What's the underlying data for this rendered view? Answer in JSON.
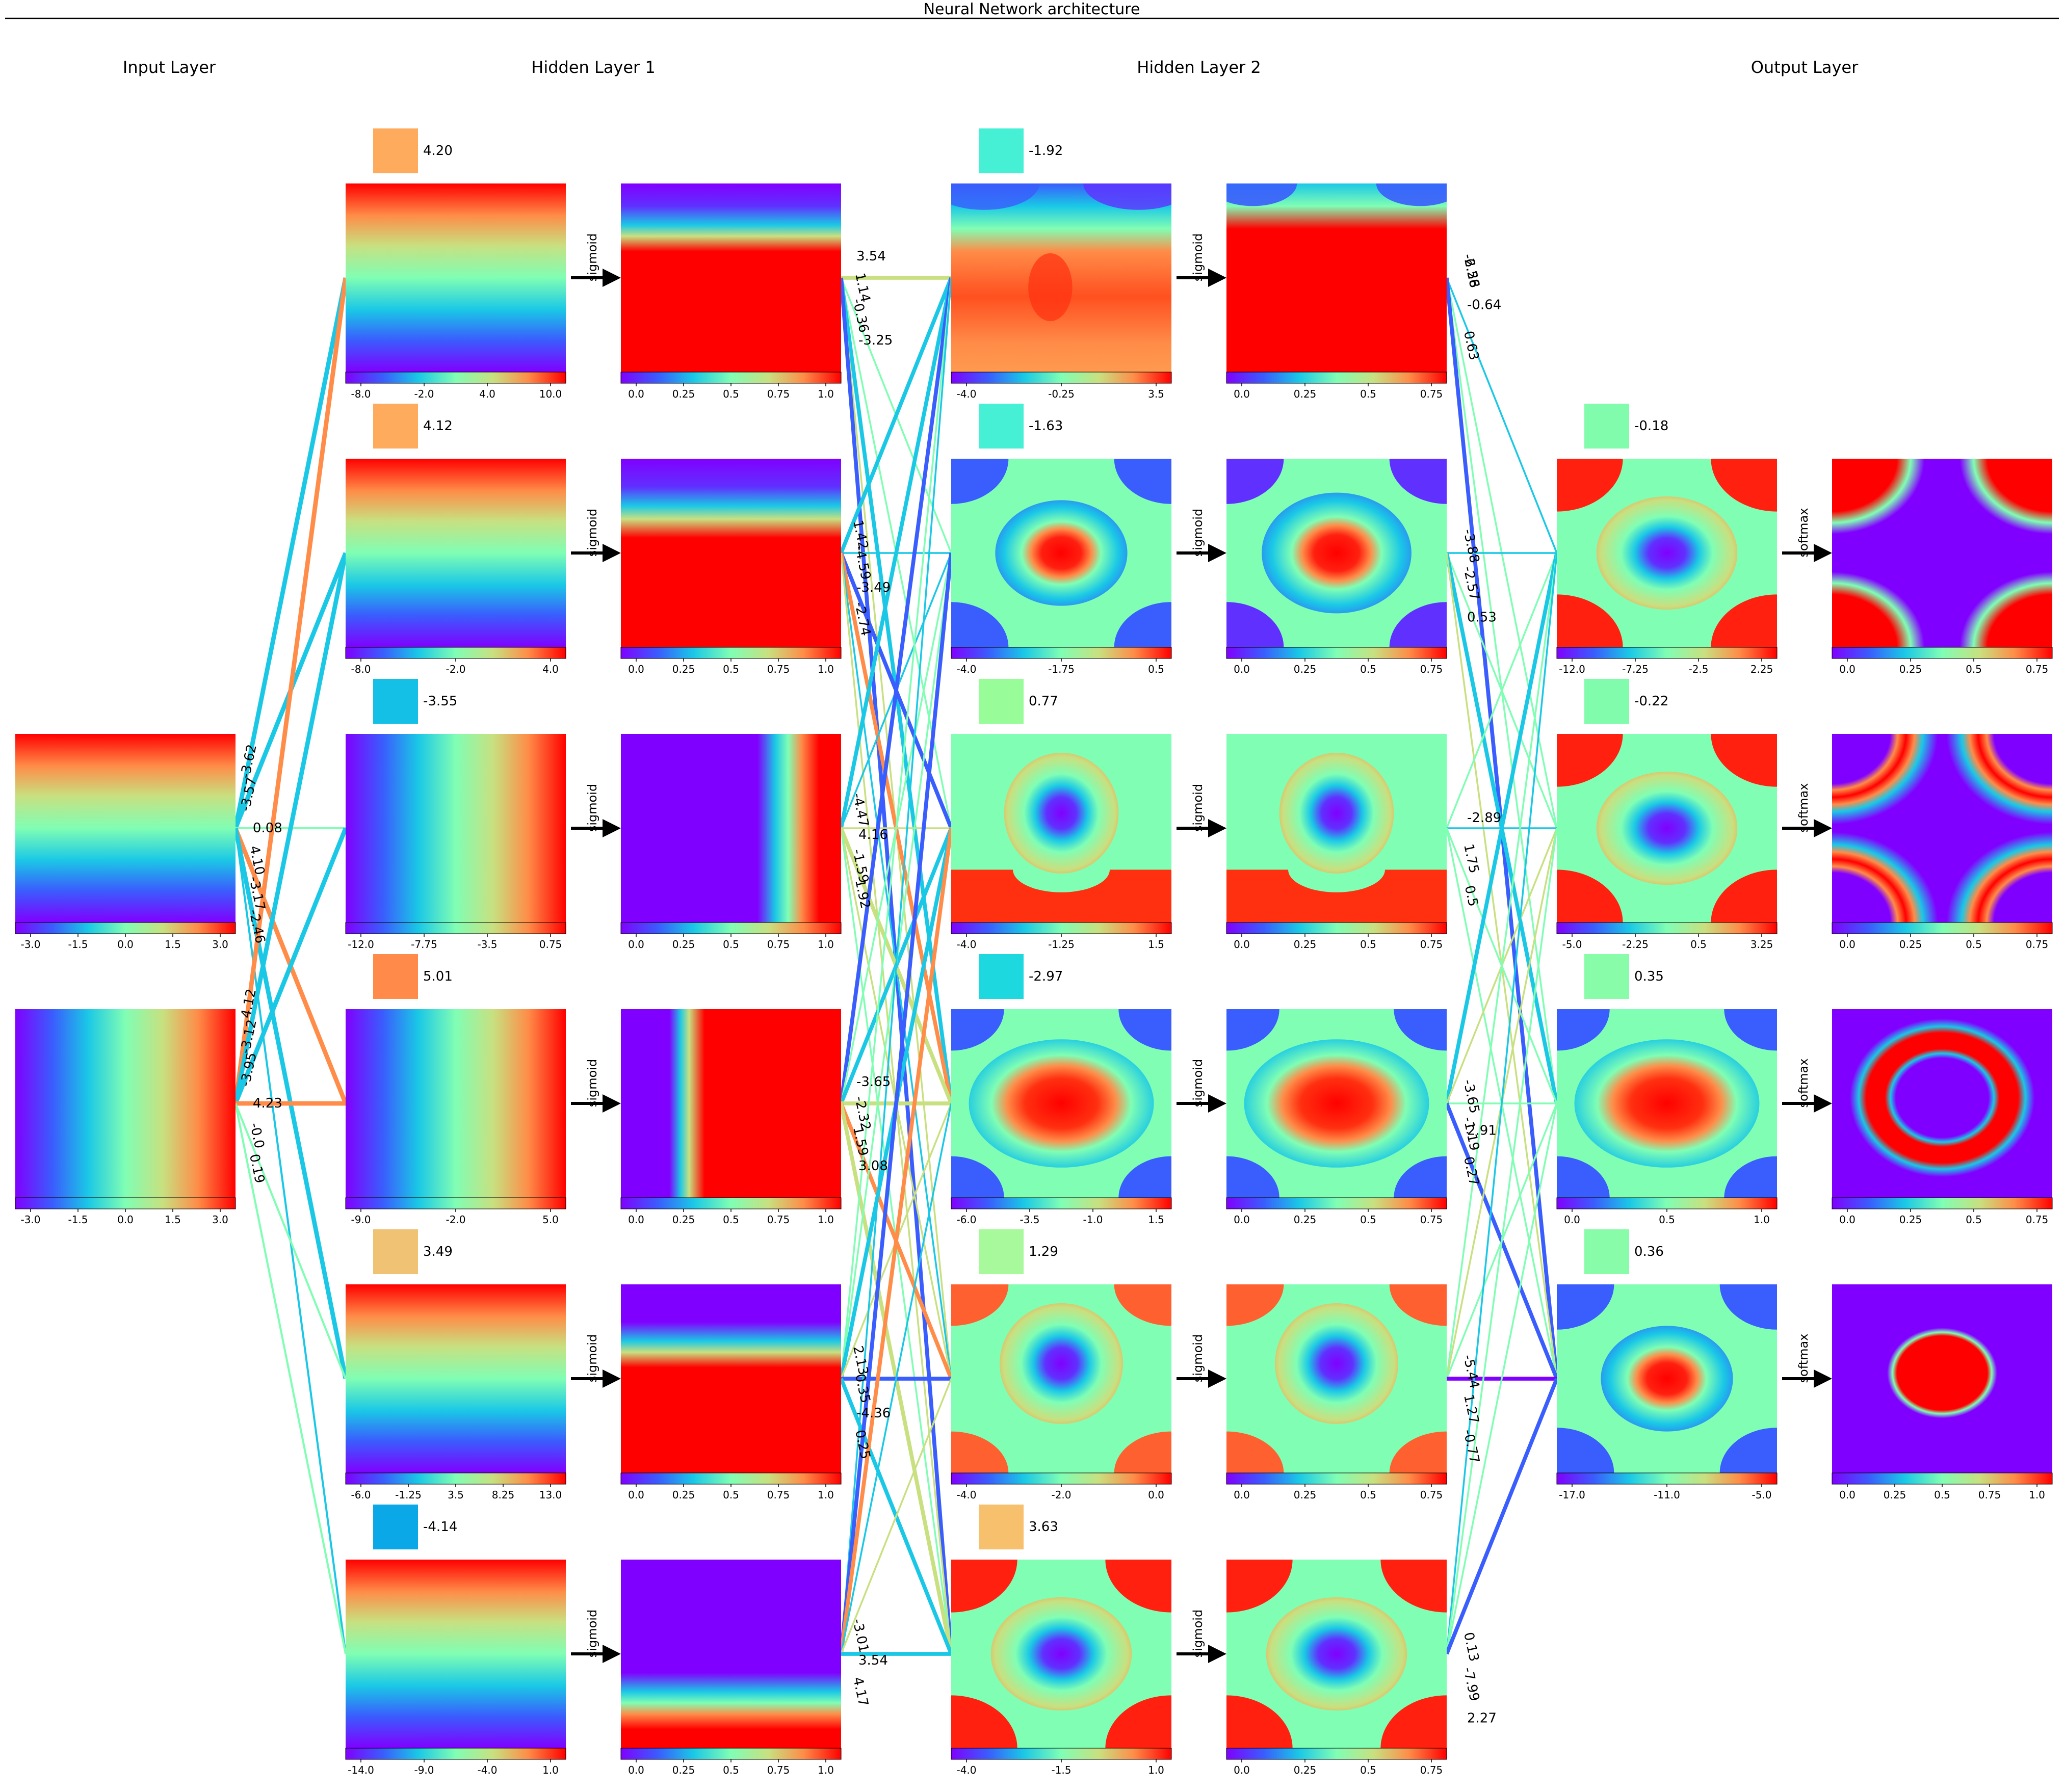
{
  "title": "Neural Network architecture",
  "layers": [
    {
      "title": "Input Layer"
    },
    {
      "title": "Hidden Layer 1"
    },
    {
      "title": "Hidden Layer 2"
    },
    {
      "title": "Output Layer"
    }
  ],
  "input_units": [
    {
      "bar_ticks": [
        "-3.0",
        "-1.5",
        "0.0",
        "1.5",
        "3.0"
      ],
      "pattern": "vgrad"
    },
    {
      "bar_ticks": [
        "-3.0",
        "-1.5",
        "0.0",
        "1.5",
        "3.0"
      ],
      "pattern": "hgrad"
    }
  ],
  "hidden1_units": [
    {
      "bias": "4.20",
      "bias_color": "#ffab5e",
      "activation": "sigmoid",
      "pre_ticks": [
        "-8.0",
        "-2.0",
        "4.0",
        "10.0"
      ],
      "post_ticks": [
        "0.0",
        "0.25",
        "0.5",
        "0.75",
        "1.0"
      ],
      "pattern": "vgrad",
      "post_pattern": "hband_top"
    },
    {
      "bias": "4.12",
      "bias_color": "#ffab5e",
      "activation": "sigmoid",
      "pre_ticks": [
        "-8.0",
        "-2.0",
        "4.0"
      ],
      "post_ticks": [
        "0.0",
        "0.25",
        "0.5",
        "0.75",
        "1.0"
      ],
      "pattern": "vgrad",
      "post_pattern": "hband_top2"
    },
    {
      "bias": "-3.55",
      "bias_color": "#14c0e6",
      "activation": "sigmoid",
      "pre_ticks": [
        "-12.0",
        "-7.75",
        "-3.5",
        "0.75"
      ],
      "post_ticks": [
        "0.0",
        "0.25",
        "0.5",
        "0.75",
        "1.0"
      ],
      "pattern": "hgrad",
      "post_pattern": "vband_right"
    },
    {
      "bias": "5.01",
      "bias_color": "#ff8a4a",
      "activation": "sigmoid",
      "pre_ticks": [
        "-9.0",
        "-2.0",
        "5.0"
      ],
      "post_ticks": [
        "0.0",
        "0.25",
        "0.5",
        "0.75",
        "1.0"
      ],
      "pattern": "hgrad",
      "post_pattern": "vband_left"
    },
    {
      "bias": "3.49",
      "bias_color": "#f0c274",
      "activation": "sigmoid",
      "pre_ticks": [
        "-6.0",
        "-1.25",
        "3.5",
        "8.25",
        "13.0"
      ],
      "post_ticks": [
        "0.0",
        "0.25",
        "0.5",
        "0.75",
        "1.0"
      ],
      "pattern": "vgrad",
      "post_pattern": "hband_mid"
    },
    {
      "bias": "-4.14",
      "bias_color": "#0ba8e8",
      "activation": "sigmoid",
      "pre_ticks": [
        "-14.0",
        "-9.0",
        "-4.0",
        "1.0"
      ],
      "post_ticks": [
        "0.0",
        "0.25",
        "0.5",
        "0.75",
        "1.0"
      ],
      "pattern": "vgrad",
      "post_pattern": "hband_bottom"
    }
  ],
  "hidden2_units": [
    {
      "bias": "-1.92",
      "bias_color": "#46f0d4",
      "activation": "sigmoid",
      "pre_ticks": [
        "-4.0",
        "-0.25",
        "3.5"
      ],
      "post_ticks": [
        "0.0",
        "0.25",
        "0.5",
        "0.75"
      ],
      "pattern": "top_band"
    },
    {
      "bias": "-1.63",
      "bias_color": "#46f0d4",
      "activation": "sigmoid",
      "pre_ticks": [
        "-4.0",
        "-1.75",
        "0.5"
      ],
      "post_ticks": [
        "0.0",
        "0.25",
        "0.5",
        "0.75"
      ],
      "pattern": "center_hot"
    },
    {
      "bias": "0.77",
      "bias_color": "#98fc98",
      "activation": "sigmoid",
      "pre_ticks": [
        "-4.0",
        "-1.25",
        "1.5"
      ],
      "post_ticks": [
        "0.0",
        "0.25",
        "0.5",
        "0.75"
      ],
      "pattern": "center_cold_bottom"
    },
    {
      "bias": "-2.97",
      "bias_color": "#1ed8e0",
      "activation": "sigmoid",
      "pre_ticks": [
        "-6.0",
        "-3.5",
        "-1.0",
        "1.5"
      ],
      "post_ticks": [
        "0.0",
        "0.25",
        "0.5",
        "0.75"
      ],
      "pattern": "center_hot_wide"
    },
    {
      "bias": "1.29",
      "bias_color": "#a8f89c",
      "activation": "sigmoid",
      "pre_ticks": [
        "-4.0",
        "-2.0",
        "0.0"
      ],
      "post_ticks": [
        "0.0",
        "0.25",
        "0.5",
        "0.75"
      ],
      "pattern": "center_cold"
    },
    {
      "bias": "3.63",
      "bias_color": "#f6c06c",
      "activation": "sigmoid",
      "pre_ticks": [
        "-4.0",
        "-1.5",
        "1.0"
      ],
      "post_ticks": [
        "0.0",
        "0.25",
        "0.5",
        "0.75"
      ],
      "pattern": "center_cold_corners"
    }
  ],
  "output_units": [
    {
      "bias": "-0.18",
      "bias_color": "#80fcac",
      "activation": "softmax",
      "pre_ticks": [
        "-12.0",
        "-7.25",
        "-2.5",
        "2.25"
      ],
      "post_ticks": [
        "0.0",
        "0.25",
        "0.5",
        "0.75"
      ],
      "pattern": "center_cold_corners",
      "post_pattern": "corners_hot"
    },
    {
      "bias": "-0.22",
      "bias_color": "#80fcac",
      "activation": "softmax",
      "pre_ticks": [
        "-5.0",
        "-2.25",
        "0.5",
        "3.25"
      ],
      "post_ticks": [
        "0.0",
        "0.25",
        "0.5",
        "0.75"
      ],
      "pattern": "center_cold_corners",
      "post_pattern": "corner_rings"
    },
    {
      "bias": "0.35",
      "bias_color": "#88fca8",
      "activation": "softmax",
      "pre_ticks": [
        "0.0",
        "0.5",
        "1.0"
      ],
      "post_ticks": [
        "0.0",
        "0.25",
        "0.5",
        "0.75"
      ],
      "pattern": "center_hot_wide",
      "post_pattern": "ring"
    },
    {
      "bias": "0.36",
      "bias_color": "#88fca8",
      "activation": "softmax",
      "pre_ticks": [
        "-17.0",
        "-11.0",
        "-5.0"
      ],
      "post_ticks": [
        "0.0",
        "0.25",
        "0.5",
        "0.75",
        "1.0"
      ],
      "pattern": "center_hot",
      "post_pattern": "center_blob"
    }
  ],
  "weights_in_h1": [
    [
      "-3.62",
      "-3.57",
      "0.08",
      "4.10",
      "-3.17",
      "-2.46"
    ],
    [
      "4.12",
      "-3.12",
      "-3.95",
      "4.23",
      "-0.0",
      "0.19"
    ]
  ],
  "weights_h1_h2_labels": [
    "3.54",
    "1.14",
    "-0.36",
    "-3.25",
    "1.42",
    "-4.59",
    "-3.49",
    "-2.74",
    "-4.47",
    "4.16",
    "-1.59",
    "1.92",
    "-3.65",
    "-2.32",
    "1.59",
    "3.08",
    "2.13",
    "0.35",
    "-4.36",
    "0.25",
    "-3.01",
    "3.54",
    "4.17"
  ],
  "weights_h2_out_labels": [
    "-2.28",
    "-0.64",
    "0.63",
    "-6.56",
    "-2.57",
    "0.53",
    "-3.88",
    "1.75",
    "0.5",
    "-2.89",
    "-1.19",
    "0.27",
    "-3.65",
    "2.91",
    "-0.77",
    "-5.44",
    "1.27",
    "2.27",
    "0.13",
    "-7.99"
  ]
}
